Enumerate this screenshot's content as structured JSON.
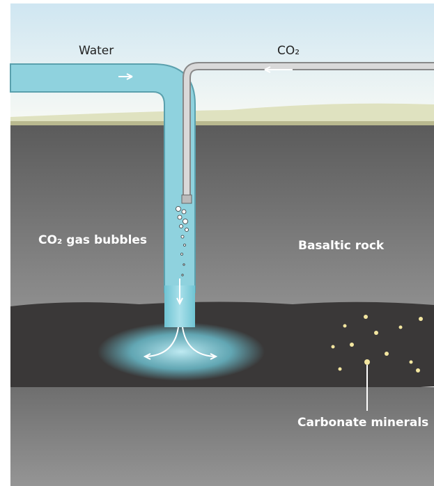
{
  "labels": {
    "water": "Water",
    "co2": "CO₂",
    "bubbles": "CO₂ gas bubbles",
    "rock": "Basaltic rock",
    "minerals": "Carbonate minerals"
  }
}
